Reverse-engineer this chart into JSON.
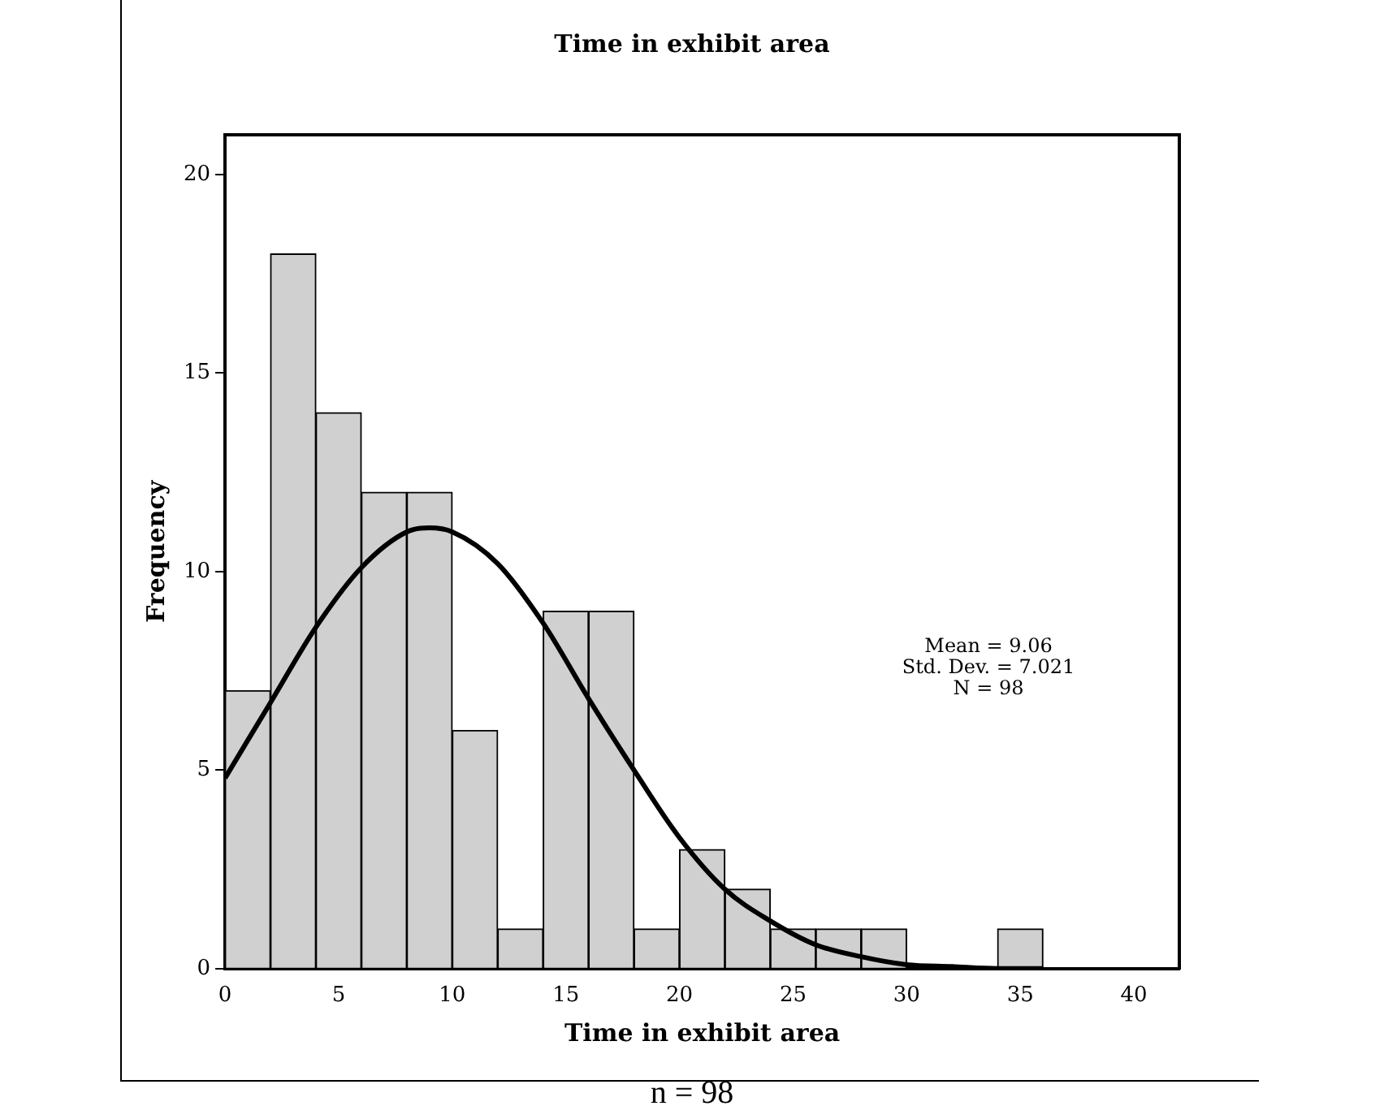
{
  "chart_data": {
    "type": "histogram",
    "title": "Time in exhibit area",
    "xlabel": "Time in exhibit area",
    "ylabel": "Frequency",
    "bins": [
      0,
      2,
      4,
      6,
      8,
      10,
      12,
      14,
      16,
      18,
      20,
      22,
      24,
      26,
      28,
      30,
      32,
      34,
      36
    ],
    "values": [
      7,
      18,
      14,
      12,
      12,
      6,
      1,
      9,
      9,
      1,
      3,
      2,
      1,
      1,
      1,
      0,
      0,
      1
    ],
    "color": "#d0d0d0",
    "series": [
      {
        "type": "line",
        "color": "#000000",
        "x": [
          0,
          2,
          4,
          6,
          8,
          9,
          10,
          12,
          14,
          16,
          18,
          20,
          22,
          24,
          26,
          28,
          30,
          32,
          34,
          36
        ],
        "values": [
          4.8,
          6.7,
          8.6,
          10.1,
          11,
          11.1,
          11,
          10.2,
          8.7,
          6.8,
          5,
          3.3,
          2,
          1.2,
          0.6,
          0.3,
          0.1,
          0.05,
          0,
          0
        ]
      }
    ],
    "xlim": [
      0,
      42
    ],
    "xticks": [
      0,
      5,
      10,
      15,
      20,
      25,
      30,
      35,
      40
    ],
    "ylim": [
      0,
      21
    ],
    "yticks": [
      0,
      5,
      10,
      15,
      20
    ],
    "grid": false,
    "legend": false,
    "marker": "none",
    "line_style": "solid",
    "annotations": [
      "Mean = 9.06",
      "Std. Dev. = 7.021",
      "N = 98",
      "n = 98"
    ]
  }
}
